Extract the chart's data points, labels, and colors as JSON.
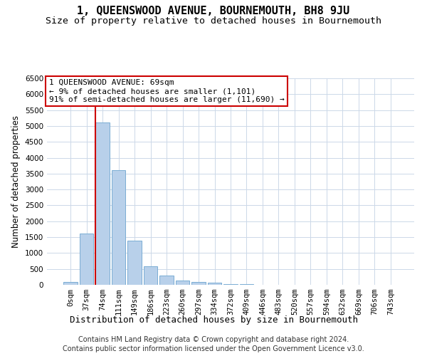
{
  "title": "1, QUEENSWOOD AVENUE, BOURNEMOUTH, BH8 9JU",
  "subtitle": "Size of property relative to detached houses in Bournemouth",
  "xlabel": "Distribution of detached houses by size in Bournemouth",
  "ylabel": "Number of detached properties",
  "footer1": "Contains HM Land Registry data © Crown copyright and database right 2024.",
  "footer2": "Contains public sector information licensed under the Open Government Licence v3.0.",
  "annotation_line1": "1 QUEENSWOOD AVENUE: 69sqm",
  "annotation_line2": "← 9% of detached houses are smaller (1,101)",
  "annotation_line3": "91% of semi-detached houses are larger (11,690) →",
  "bar_labels": [
    "0sqm",
    "37sqm",
    "74sqm",
    "111sqm",
    "149sqm",
    "186sqm",
    "223sqm",
    "260sqm",
    "297sqm",
    "334sqm",
    "372sqm",
    "409sqm",
    "446sqm",
    "483sqm",
    "520sqm",
    "557sqm",
    "594sqm",
    "632sqm",
    "669sqm",
    "706sqm",
    "743sqm"
  ],
  "bar_values": [
    80,
    1620,
    5100,
    3600,
    1400,
    590,
    300,
    130,
    100,
    60,
    30,
    15,
    10,
    8,
    5,
    4,
    3,
    3,
    2,
    2,
    2
  ],
  "bar_color": "#b8d0ea",
  "bar_edge_color": "#7aadd4",
  "red_line_index": 2,
  "ylim": [
    0,
    6500
  ],
  "yticks": [
    0,
    500,
    1000,
    1500,
    2000,
    2500,
    3000,
    3500,
    4000,
    4500,
    5000,
    5500,
    6000,
    6500
  ],
  "background_color": "#ffffff",
  "grid_color": "#ccd8e8",
  "annotation_box_color": "#ffffff",
  "annotation_box_edge": "#cc0000",
  "red_line_color": "#cc0000",
  "title_fontsize": 11,
  "subtitle_fontsize": 9.5,
  "axis_label_fontsize": 8.5,
  "tick_fontsize": 7.5,
  "annotation_fontsize": 8,
  "footer_fontsize": 7
}
